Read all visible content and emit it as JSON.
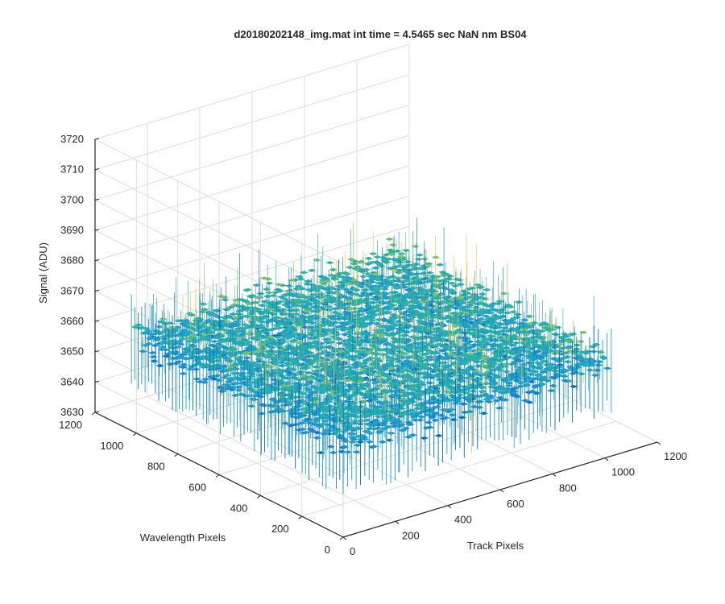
{
  "chart_data": {
    "type": "surface",
    "title": "d20180202148_img.mat int time = 4.5465 sec  NaN nm BS04",
    "xlabel": "Track Pixels",
    "ylabel": "Wavelength Pixels",
    "zlabel": "Signal (ADU)",
    "xlim": [
      0,
      1200
    ],
    "ylim": [
      0,
      1200
    ],
    "zlim": [
      3630,
      3720
    ],
    "x_ticks": [
      0,
      200,
      400,
      600,
      800,
      1000,
      1200
    ],
    "y_ticks": [
      0,
      200,
      400,
      600,
      800,
      1000,
      1200
    ],
    "z_ticks": [
      3630,
      3640,
      3650,
      3660,
      3670,
      3680,
      3690,
      3700,
      3710,
      3720
    ],
    "surface": {
      "x_range": [
        0,
        1024
      ],
      "y_range": [
        0,
        1024
      ],
      "mean_level": 3661,
      "noise_min": 3640,
      "noise_max": 3700,
      "colormap": [
        "#0072bd",
        "#1a8fd1",
        "#21a3c4",
        "#2bb39f",
        "#7fbf6a",
        "#e6c33d"
      ]
    },
    "grid": true,
    "view": "3d-isometric"
  }
}
